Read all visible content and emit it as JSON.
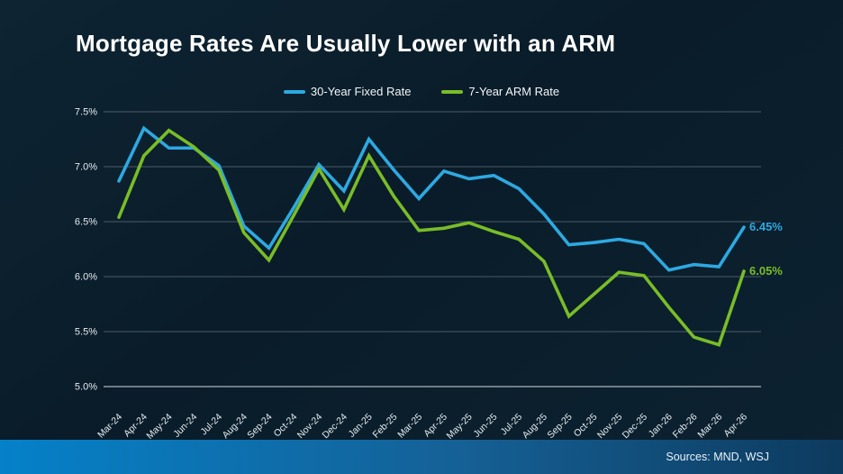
{
  "title": "Mortgage Rates Are Usually Lower with an ARM",
  "legend": {
    "items": [
      {
        "label": "30-Year Fixed Rate",
        "color": "#2da9e1"
      },
      {
        "label": "7-Year ARM Rate",
        "color": "#79bd27"
      }
    ]
  },
  "end_labels": {
    "fixed": "6.45%",
    "arm": "6.05%"
  },
  "footer": {
    "sources": "Sources: MND, WSJ"
  },
  "colors": {
    "fixed_line": "#2da9e1",
    "arm_line": "#79bd27",
    "background": "#0b1e2b",
    "gridline": "#8a99a3",
    "axis_text": "#e6ecef",
    "footer_left": "#0581c9",
    "footer_right": "#0d3a5e"
  },
  "chart_data": {
    "type": "line",
    "title": "Mortgage Rates Are Usually Lower with an ARM",
    "categories": [
      "Mar-24",
      "Apr-24",
      "May-24",
      "Jun-24",
      "Jul-24",
      "Aug-24",
      "Sep-24",
      "Oct-24",
      "Nov-24",
      "Dec-24",
      "Jan-25",
      "Feb-25",
      "Mar-25",
      "Apr-25",
      "May-25",
      "Jun-25",
      "Jul-25",
      "Aug-25",
      "Sep-25",
      "Oct-25",
      "Nov-25",
      "Dec-25",
      "Jan-26",
      "Feb-26",
      "Mar-26",
      "Apr-26"
    ],
    "series": [
      {
        "name": "30-Year Fixed Rate",
        "color": "#2da9e1",
        "values": [
          6.87,
          7.35,
          7.17,
          7.17,
          7.01,
          6.46,
          6.26,
          6.63,
          7.02,
          6.78,
          7.25,
          6.97,
          6.71,
          6.96,
          6.89,
          6.92,
          6.8,
          6.57,
          6.29,
          6.31,
          6.34,
          6.3,
          6.06,
          6.11,
          6.09,
          6.45
        ],
        "end_label": "6.45%"
      },
      {
        "name": "7-Year ARM Rate",
        "color": "#79bd27",
        "values": [
          6.54,
          7.1,
          7.33,
          7.18,
          6.97,
          6.4,
          6.15,
          6.56,
          6.98,
          6.61,
          7.1,
          6.73,
          6.42,
          6.44,
          6.49,
          6.41,
          6.34,
          6.14,
          5.64,
          5.84,
          6.04,
          6.01,
          5.72,
          5.45,
          5.38,
          6.05
        ],
        "end_label": "6.05%"
      }
    ],
    "xlabel": "",
    "ylabel": "",
    "ytick_labels": [
      "7.5%",
      "7.0%",
      "6.5%",
      "6.0%",
      "5.5%",
      "5.0%"
    ],
    "ylim": [
      5.0,
      7.5
    ],
    "grid": true,
    "legend_position": "top-center"
  }
}
